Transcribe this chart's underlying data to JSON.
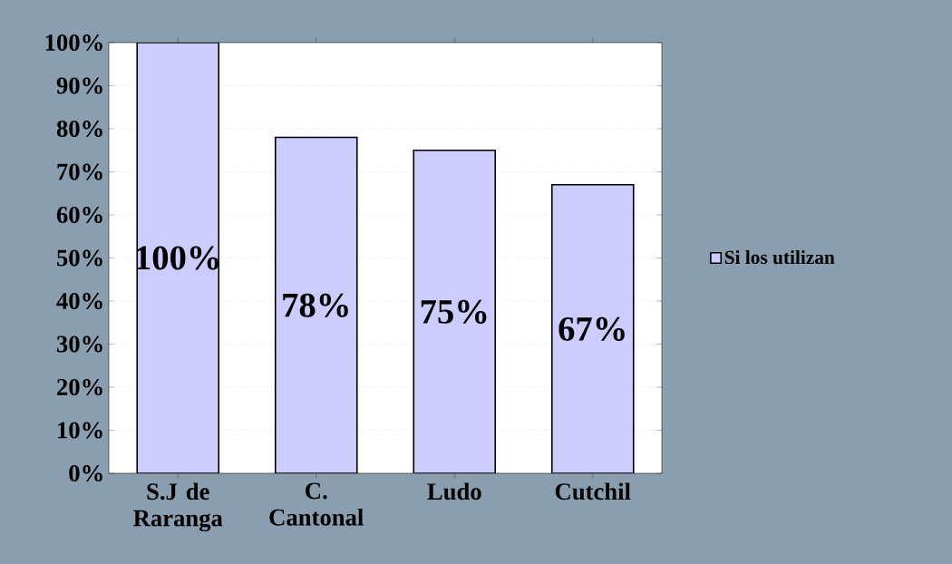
{
  "chart_data": {
    "type": "bar",
    "categories": [
      "S.J de Raranga",
      "C. Cantonal",
      "Ludo",
      "Cutchil"
    ],
    "series": [
      {
        "name": "Si los utilizan",
        "color": "#ccccff",
        "values": [
          100,
          78,
          75,
          67
        ],
        "value_labels": [
          "100%",
          "78%",
          "75%",
          "67%"
        ]
      }
    ],
    "ylim": [
      0,
      100
    ],
    "yticks": [
      {
        "value": 0,
        "label": "0%"
      },
      {
        "value": 10,
        "label": "10%"
      },
      {
        "value": 20,
        "label": "20%"
      },
      {
        "value": 30,
        "label": "30%"
      },
      {
        "value": 40,
        "label": "40%"
      },
      {
        "value": 50,
        "label": "50%"
      },
      {
        "value": 60,
        "label": "60%"
      },
      {
        "value": 70,
        "label": "70%"
      },
      {
        "value": 80,
        "label": "80%"
      },
      {
        "value": 90,
        "label": "90%"
      },
      {
        "value": 100,
        "label": "100%"
      }
    ],
    "grid": "y",
    "legend": "right"
  }
}
